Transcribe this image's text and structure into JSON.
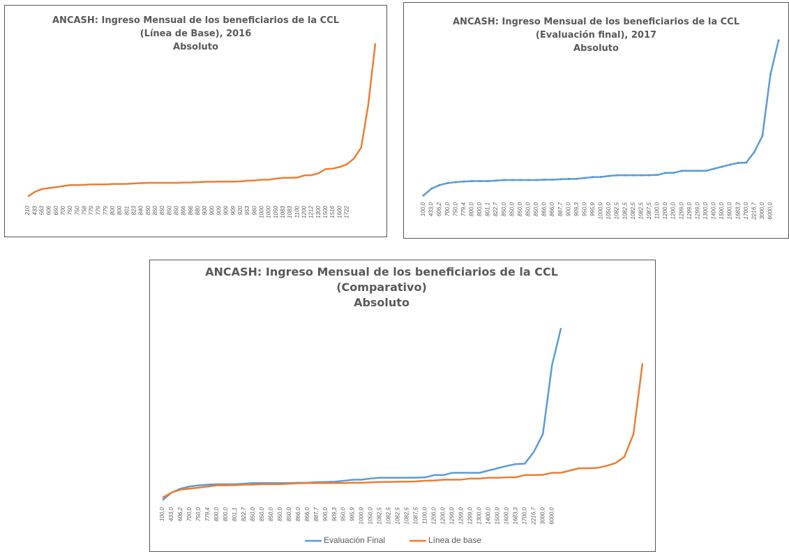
{
  "chart_data": [
    {
      "type": "line",
      "title_lines": [
        "ANCASH: Ingreso Mensual de los beneficiarios de la CCL",
        "(Línea de Base), 2016",
        "Absoluto"
      ],
      "categories": [
        "210",
        "433",
        "563",
        "606",
        "650",
        "700",
        "750",
        "750",
        "758",
        "779",
        "779",
        "779",
        "800",
        "800",
        "801",
        "823",
        "840",
        "850",
        "850",
        "850",
        "850",
        "850",
        "866",
        "866",
        "880",
        "900",
        "900",
        "909",
        "909",
        "909",
        "920",
        "953",
        "960",
        "1000",
        "1000",
        "1050",
        "1083",
        "1083",
        "1100",
        "1200",
        "1212",
        "1300",
        "1500",
        "1516",
        "1600",
        "1722",
        null,
        null,
        null,
        null
      ],
      "series": [
        {
          "name": "Línea de base",
          "color": "#ed7d31",
          "values": [
            210,
            433,
            563,
            606,
            650,
            700,
            750,
            750,
            758,
            779,
            779,
            779,
            800,
            800,
            801,
            823,
            840,
            850,
            850,
            850,
            850,
            850,
            866,
            866,
            880,
            900,
            900,
            909,
            909,
            909,
            920,
            953,
            960,
            1000,
            1000,
            1050,
            1083,
            1083,
            1100,
            1200,
            1212,
            1300,
            1500,
            1516,
            1600,
            1722,
            2000,
            2500,
            4500,
            7400
          ]
        }
      ],
      "markers": false
    },
    {
      "type": "line",
      "title_lines": [
        "ANCASH: Ingreso Mensual de los beneficiarios de la CCL",
        "(Evaluación final), 2017",
        "Absoluto"
      ],
      "categories": [
        "100,0",
        "433,0",
        "606,2",
        "700,0",
        "750,0",
        "779,4",
        "800,0",
        "800,0",
        "801,1",
        "822,7",
        "850,0",
        "850,0",
        "850,0",
        "850,0",
        "850,0",
        "866,0",
        "866,0",
        "887,7",
        "900,0",
        "909,3",
        "950,0",
        "995,9",
        "1000,0",
        "1050,0",
        "1082,5",
        "1082,5",
        "1082,5",
        "1082,5",
        "1087,5",
        "1100,0",
        "1200,0",
        "1200,0",
        "1299,0",
        "1299,0",
        "1299,0",
        "1300,0",
        "1400,0",
        "1500,0",
        "1600,0",
        "1683,3",
        "1700,0",
        "2216,7",
        "3000,0",
        "6000,0",
        null
      ],
      "series": [
        {
          "name": "Evaluación Final",
          "color": "#5b9bd5",
          "values": [
            100,
            433,
            606.2,
            700,
            750,
            779.4,
            800,
            800,
            801.1,
            822.7,
            850,
            850,
            850,
            850,
            850,
            866,
            866,
            887.7,
            900,
            909.3,
            950,
            995.9,
            1000,
            1050,
            1082.5,
            1082.5,
            1082.5,
            1082.5,
            1087.5,
            1100,
            1200,
            1200,
            1299,
            1299,
            1299,
            1300,
            1400,
            1500,
            1600,
            1683.3,
            1700,
            2216.7,
            3000,
            6000,
            7650
          ]
        }
      ],
      "markers": true
    },
    {
      "type": "line",
      "title_lines": [
        "ANCASH: Ingreso Mensual de los beneficiarios de la CCL",
        "(Comparativo)",
        "Absoluto"
      ],
      "categories": [
        "100,0",
        "433,0",
        "606,2",
        "700,0",
        "750,0",
        "779,4",
        "800,0",
        "800,0",
        "801,1",
        "822,7",
        "850,0",
        "850,0",
        "850,0",
        "850,0",
        "850,0",
        "866,0",
        "866,0",
        "887,7",
        "900,0",
        "909,3",
        "950,0",
        "995,9",
        "1000,0",
        "1050,0",
        "1082,5",
        "1082,5",
        "1082,5",
        "1082,5",
        "1087,5",
        "1100,0",
        "1200,0",
        "1200,0",
        "1299,0",
        "1299,0",
        "1299,0",
        "1300,0",
        "1400,0",
        "1500,0",
        "1600,0",
        "1683,3",
        "1700,0",
        "2216,7",
        "3000,0",
        "6000,0",
        null,
        null,
        null,
        null,
        null,
        null,
        null,
        null,
        null,
        null
      ],
      "series": [
        {
          "name": "Evaluación Final",
          "color": "#5b9bd5",
          "values": [
            100,
            433,
            606.2,
            700,
            750,
            779.4,
            800,
            800,
            801.1,
            822.7,
            850,
            850,
            850,
            850,
            850,
            866,
            866,
            887.7,
            900,
            909.3,
            950,
            995.9,
            1000,
            1050,
            1082.5,
            1082.5,
            1082.5,
            1082.5,
            1087.5,
            1100,
            1200,
            1200,
            1299,
            1299,
            1299,
            1300,
            1400,
            1500,
            1600,
            1683.3,
            1700,
            2216.7,
            3000,
            6000,
            7650,
            null,
            null,
            null,
            null,
            null,
            null,
            null,
            null,
            null
          ]
        },
        {
          "name": "Línea de base",
          "color": "#ed7d31",
          "values": [
            210,
            433,
            563,
            606,
            650,
            700,
            750,
            750,
            758,
            779,
            779,
            800,
            800,
            801,
            823,
            840,
            850,
            850,
            850,
            850,
            850,
            866,
            866,
            880,
            900,
            900,
            909,
            909,
            920,
            953,
            960,
            1000,
            1000,
            1000,
            1050,
            1050,
            1083,
            1083,
            1100,
            1100,
            1200,
            1200,
            1212,
            1300,
            1300,
            1400,
            1500,
            1500,
            1516,
            1600,
            1722,
            2000,
            3000,
            6100
          ]
        }
      ],
      "markers": false,
      "legend": "bottom"
    }
  ]
}
